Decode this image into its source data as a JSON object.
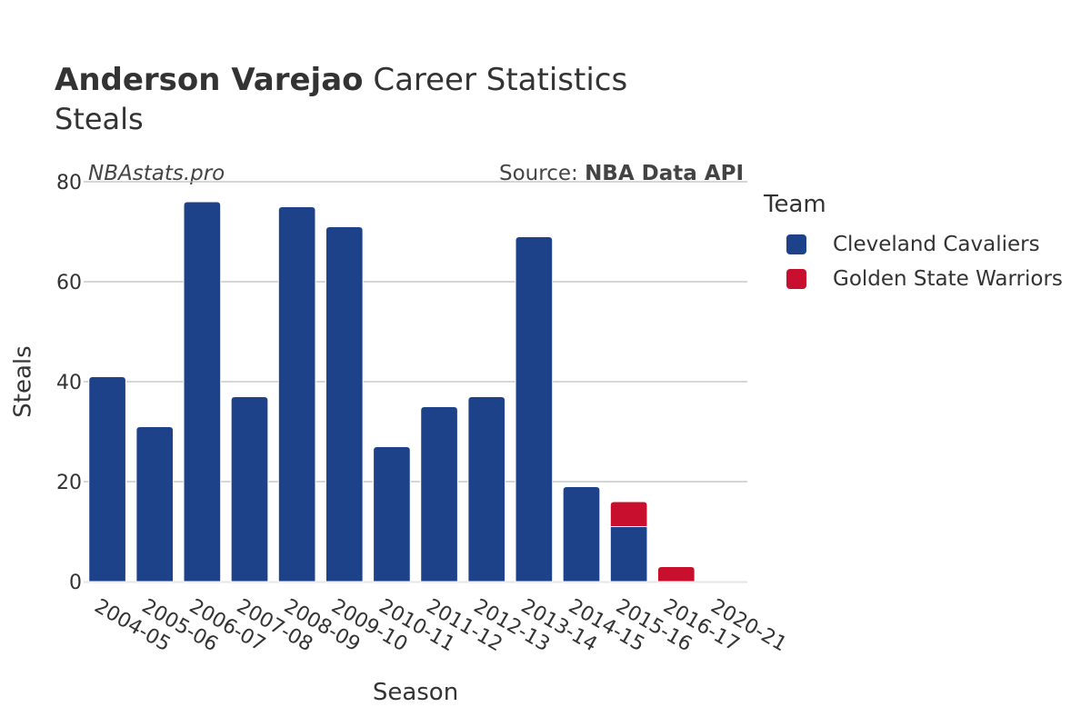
{
  "header": {
    "title_bold": "Anderson Varejao",
    "title_rest": " Career Statistics",
    "subtitle": "Steals",
    "watermark": "NBAstats.pro",
    "source_prefix": "Source: ",
    "source_name": "NBA Data API"
  },
  "legend": {
    "title": "Team",
    "items": [
      {
        "label": "Cleveland Cavaliers",
        "color": "#1d428a"
      },
      {
        "label": "Golden State Warriors",
        "color": "#c8102e"
      }
    ]
  },
  "chart_data": {
    "type": "bar",
    "stacked": true,
    "xlabel": "Season",
    "ylabel": "Steals",
    "ylim": [
      0,
      80
    ],
    "yticks": [
      0,
      20,
      40,
      60,
      80
    ],
    "grid": true,
    "legend_position": "right",
    "categories": [
      "2004-05",
      "2005-06",
      "2006-07",
      "2007-08",
      "2008-09",
      "2009-10",
      "2010-11",
      "2011-12",
      "2012-13",
      "2013-14",
      "2014-15",
      "2015-16",
      "2016-17",
      "2020-21"
    ],
    "series": [
      {
        "name": "Cleveland Cavaliers",
        "color": "#1d428a",
        "values": [
          41,
          31,
          76,
          37,
          75,
          71,
          27,
          35,
          37,
          69,
          19,
          11,
          0,
          0
        ]
      },
      {
        "name": "Golden State Warriors",
        "color": "#c8102e",
        "values": [
          0,
          0,
          0,
          0,
          0,
          0,
          0,
          0,
          0,
          0,
          0,
          5,
          3,
          0
        ]
      }
    ]
  }
}
